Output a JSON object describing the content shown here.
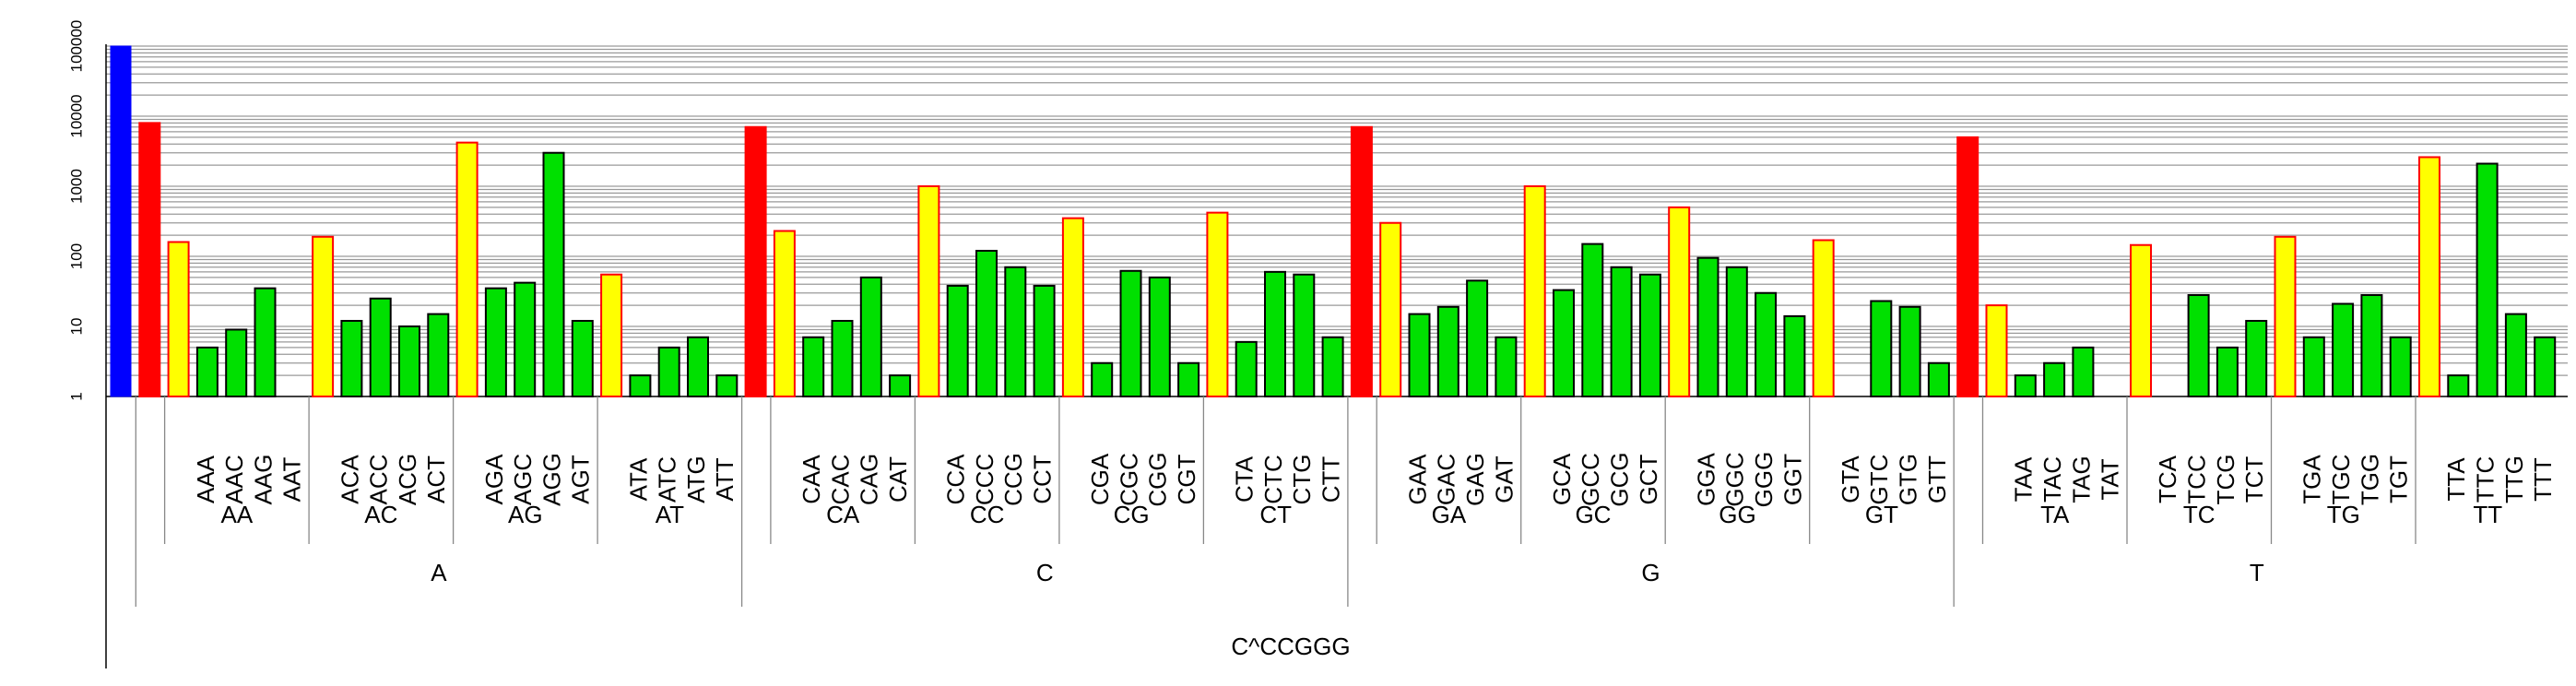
{
  "chart_data": {
    "type": "bar",
    "scale": "log",
    "ylim": [
      1,
      100000
    ],
    "y_ticks": [
      "1",
      "10",
      "100",
      "1000",
      "10000",
      "100000"
    ],
    "grid": true,
    "root_label": "C^CCGGG",
    "colors": {
      "root": "#0000ff",
      "level1": "#ff0000",
      "level2": "#ffff00",
      "level2_outline": "#ff0000",
      "level3": "#00e000",
      "level3_outline": "#000000"
    },
    "root_value": 100000,
    "groups": [
      {
        "name": "A",
        "value": 8000,
        "children": [
          {
            "name": "AA",
            "value": 160,
            "children": [
              [
                "AAA",
                5
              ],
              [
                "AAC",
                9
              ],
              [
                "AAG",
                35
              ],
              [
                "AAT",
                0
              ]
            ]
          },
          {
            "name": "AC",
            "value": 190,
            "children": [
              [
                "ACA",
                12
              ],
              [
                "ACC",
                25
              ],
              [
                "ACG",
                10
              ],
              [
                "ACT",
                15
              ]
            ]
          },
          {
            "name": "AG",
            "value": 4200,
            "children": [
              [
                "AGA",
                35
              ],
              [
                "AGC",
                42
              ],
              [
                "AGG",
                3000
              ],
              [
                "AGT",
                12
              ]
            ]
          },
          {
            "name": "AT",
            "value": 55,
            "children": [
              [
                "ATA",
                2
              ],
              [
                "ATC",
                5
              ],
              [
                "ATG",
                7
              ],
              [
                "ATT",
                2
              ]
            ]
          }
        ]
      },
      {
        "name": "C",
        "value": 7000,
        "children": [
          {
            "name": "CA",
            "value": 230,
            "children": [
              [
                "CAA",
                7
              ],
              [
                "CAC",
                12
              ],
              [
                "CAG",
                50
              ],
              [
                "CAT",
                2
              ]
            ]
          },
          {
            "name": "CC",
            "value": 1000,
            "children": [
              [
                "CCA",
                38
              ],
              [
                "CCC",
                120
              ],
              [
                "CCG",
                70
              ],
              [
                "CCT",
                38
              ]
            ]
          },
          {
            "name": "CG",
            "value": 350,
            "children": [
              [
                "CGA",
                3
              ],
              [
                "CGC",
                62
              ],
              [
                "CGG",
                50
              ],
              [
                "CGT",
                3
              ]
            ]
          },
          {
            "name": "CT",
            "value": 420,
            "children": [
              [
                "CTA",
                6
              ],
              [
                "CTC",
                60
              ],
              [
                "CTG",
                55
              ],
              [
                "CTT",
                7
              ]
            ]
          }
        ]
      },
      {
        "name": "G",
        "value": 7000,
        "children": [
          {
            "name": "GA",
            "value": 300,
            "children": [
              [
                "GAA",
                15
              ],
              [
                "GAC",
                19
              ],
              [
                "GAG",
                45
              ],
              [
                "GAT",
                7
              ]
            ]
          },
          {
            "name": "GC",
            "value": 1000,
            "children": [
              [
                "GCA",
                33
              ],
              [
                "GCC",
                150
              ],
              [
                "GCG",
                70
              ],
              [
                "GCT",
                55
              ]
            ]
          },
          {
            "name": "GG",
            "value": 500,
            "children": [
              [
                "GGA",
                95
              ],
              [
                "GGC",
                70
              ],
              [
                "GGG",
                30
              ],
              [
                "GGT",
                14
              ]
            ]
          },
          {
            "name": "GT",
            "value": 170,
            "children": [
              [
                "GTA",
                0
              ],
              [
                "GTC",
                23
              ],
              [
                "GTG",
                19
              ],
              [
                "GTT",
                3
              ]
            ]
          }
        ]
      },
      {
        "name": "T",
        "value": 5000,
        "children": [
          {
            "name": "TA",
            "value": 20,
            "children": [
              [
                "TAA",
                2
              ],
              [
                "TAC",
                3
              ],
              [
                "TAG",
                5
              ],
              [
                "TAT",
                0
              ]
            ]
          },
          {
            "name": "TC",
            "value": 145,
            "children": [
              [
                "TCA",
                0
              ],
              [
                "TCC",
                28
              ],
              [
                "TCG",
                5
              ],
              [
                "TCT",
                12
              ]
            ]
          },
          {
            "name": "TG",
            "value": 190,
            "children": [
              [
                "TGA",
                7
              ],
              [
                "TGC",
                21
              ],
              [
                "TGG",
                28
              ],
              [
                "TGT",
                7
              ]
            ]
          },
          {
            "name": "TT",
            "value": 2600,
            "children": [
              [
                "TTA",
                2
              ],
              [
                "TTC",
                2100
              ],
              [
                "TTG",
                15
              ],
              [
                "TTT",
                7
              ]
            ]
          }
        ]
      }
    ]
  }
}
